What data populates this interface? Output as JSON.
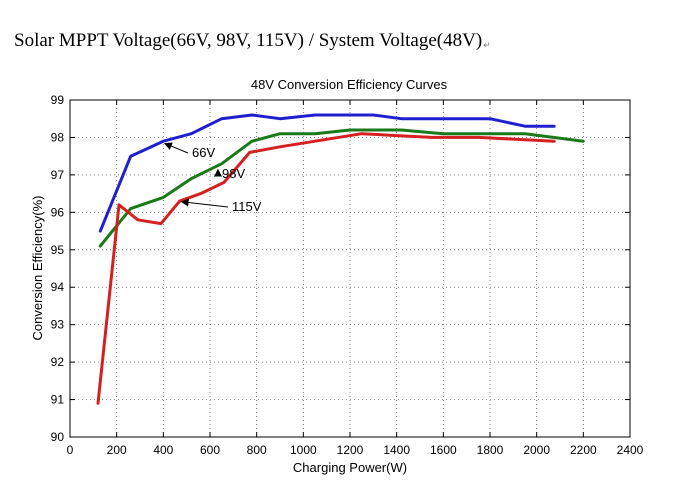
{
  "document": {
    "heading": "Solar MPPT Voltage(66V, 98V, 115V) / System Voltage(48V)",
    "paragraph_mark": "↵"
  },
  "chart_data": {
    "type": "line",
    "title": "48V Conversion Efficiency Curves",
    "xlabel": "Charging Power(W)",
    "ylabel": "Conversion Efficiency(%)",
    "xlim": [
      0,
      2400
    ],
    "ylim": [
      90,
      99
    ],
    "xticks": [
      0,
      200,
      400,
      600,
      800,
      1000,
      1200,
      1400,
      1600,
      1800,
      2000,
      2200,
      2400
    ],
    "yticks": [
      90,
      91,
      92,
      93,
      94,
      95,
      96,
      97,
      98,
      99
    ],
    "grid": true,
    "series": [
      {
        "name": "66V",
        "color": "#1f1fd0",
        "x": [
          130,
          260,
          400,
          520,
          650,
          780,
          900,
          1050,
          1200,
          1300,
          1420,
          1600,
          1800,
          1950,
          2075
        ],
        "y": [
          95.5,
          97.5,
          97.9,
          98.1,
          98.5,
          98.6,
          98.5,
          98.6,
          98.6,
          98.6,
          98.5,
          98.5,
          98.5,
          98.3,
          98.3
        ]
      },
      {
        "name": "98V",
        "color": "#1a7a1a",
        "x": [
          130,
          260,
          400,
          520,
          650,
          780,
          900,
          1050,
          1200,
          1300,
          1420,
          1600,
          1800,
          1950,
          2200
        ],
        "y": [
          95.1,
          96.1,
          96.4,
          96.9,
          97.3,
          97.9,
          98.1,
          98.1,
          98.2,
          98.2,
          98.2,
          98.1,
          98.1,
          98.1,
          97.9
        ]
      },
      {
        "name": "115V",
        "color": "#d42020",
        "x": [
          120,
          210,
          290,
          390,
          470,
          560,
          660,
          770,
          900,
          1050,
          1250,
          1400,
          1550,
          1750,
          2075
        ],
        "y": [
          90.9,
          96.2,
          95.8,
          95.7,
          96.3,
          96.5,
          96.8,
          97.6,
          97.75,
          97.9,
          98.1,
          98.05,
          98.0,
          98.0,
          97.9
        ]
      }
    ],
    "annotations": [
      {
        "text": "66V",
        "series": "66V"
      },
      {
        "text": "98V",
        "series": "98V"
      },
      {
        "text": "115V",
        "series": "115V"
      }
    ]
  }
}
